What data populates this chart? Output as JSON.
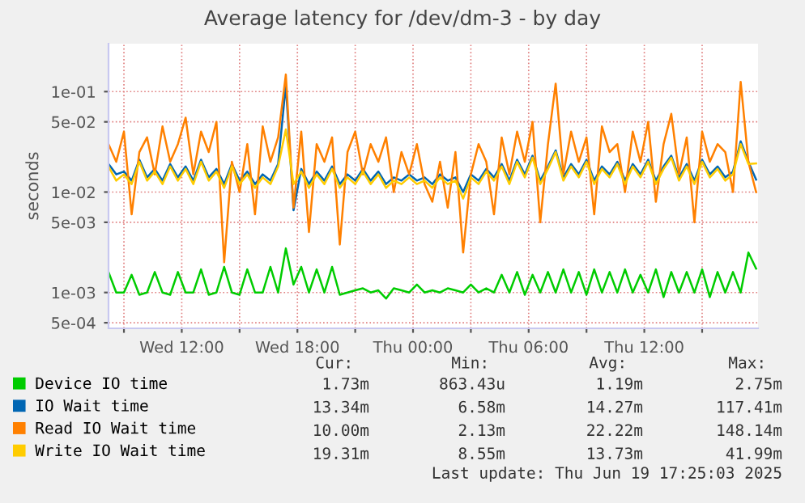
{
  "chart_data": {
    "type": "line",
    "title": "Average latency for /dev/dm-3 - by day",
    "ylabel": "seconds",
    "log": "y",
    "ylim": [
      0.00044,
      0.3
    ],
    "yticks": [
      {
        "value": 0.0005,
        "label": "5e-04"
      },
      {
        "value": 0.001,
        "label": "1e-03"
      },
      {
        "value": 0.005,
        "label": "5e-03"
      },
      {
        "value": 0.01,
        "label": "1e-02"
      },
      {
        "value": 0.05,
        "label": "5e-02"
      },
      {
        "value": 0.1,
        "label": "1e-01"
      }
    ],
    "xlim": [
      "2025-06-18T08:12",
      "2025-06-19T17:54"
    ],
    "xticks": [
      {
        "value": "2025-06-18T09:00",
        "label": null
      },
      {
        "value": "2025-06-18T12:00",
        "label": "Wed 12:00"
      },
      {
        "value": "2025-06-18T15:00",
        "label": null
      },
      {
        "value": "2025-06-18T18:00",
        "label": "Wed 18:00"
      },
      {
        "value": "2025-06-18T21:00",
        "label": null
      },
      {
        "value": "2025-06-19T00:00",
        "label": "Thu 00:00"
      },
      {
        "value": "2025-06-19T03:00",
        "label": null
      },
      {
        "value": "2025-06-19T06:00",
        "label": "Thu 06:00"
      },
      {
        "value": "2025-06-19T09:00",
        "label": null
      },
      {
        "value": "2025-06-19T12:00",
        "label": "Thu 12:00"
      },
      {
        "value": "2025-06-19T15:00",
        "label": null
      }
    ],
    "grid": true,
    "legend": "bottom",
    "line_style": "solid",
    "marker": "none",
    "x": [
      "2025-06-18T08:12",
      "2025-06-18T08:36",
      "2025-06-18T09:00",
      "2025-06-18T09:24",
      "2025-06-18T09:48",
      "2025-06-18T10:12",
      "2025-06-18T10:36",
      "2025-06-18T11:00",
      "2025-06-18T11:24",
      "2025-06-18T11:48",
      "2025-06-18T12:12",
      "2025-06-18T12:36",
      "2025-06-18T13:00",
      "2025-06-18T13:24",
      "2025-06-18T13:48",
      "2025-06-18T14:12",
      "2025-06-18T14:36",
      "2025-06-18T15:00",
      "2025-06-18T15:24",
      "2025-06-18T15:48",
      "2025-06-18T16:12",
      "2025-06-18T16:36",
      "2025-06-18T17:00",
      "2025-06-18T17:24",
      "2025-06-18T17:48",
      "2025-06-18T18:12",
      "2025-06-18T18:36",
      "2025-06-18T19:00",
      "2025-06-18T19:24",
      "2025-06-18T19:48",
      "2025-06-18T20:12",
      "2025-06-18T20:36",
      "2025-06-18T21:00",
      "2025-06-18T21:24",
      "2025-06-18T21:48",
      "2025-06-18T22:12",
      "2025-06-18T22:36",
      "2025-06-18T23:00",
      "2025-06-18T23:24",
      "2025-06-18T23:48",
      "2025-06-19T00:12",
      "2025-06-19T00:36",
      "2025-06-19T01:00",
      "2025-06-19T01:24",
      "2025-06-19T01:48",
      "2025-06-19T02:12",
      "2025-06-19T02:36",
      "2025-06-19T03:00",
      "2025-06-19T03:24",
      "2025-06-19T03:48",
      "2025-06-19T04:12",
      "2025-06-19T04:36",
      "2025-06-19T05:00",
      "2025-06-19T05:24",
      "2025-06-19T05:48",
      "2025-06-19T06:12",
      "2025-06-19T06:36",
      "2025-06-19T07:00",
      "2025-06-19T07:24",
      "2025-06-19T07:48",
      "2025-06-19T08:12",
      "2025-06-19T08:36",
      "2025-06-19T09:00",
      "2025-06-19T09:24",
      "2025-06-19T09:48",
      "2025-06-19T10:12",
      "2025-06-19T10:36",
      "2025-06-19T11:00",
      "2025-06-19T11:24",
      "2025-06-19T11:48",
      "2025-06-19T12:12",
      "2025-06-19T12:36",
      "2025-06-19T13:00",
      "2025-06-19T13:24",
      "2025-06-19T13:48",
      "2025-06-19T14:12",
      "2025-06-19T14:36",
      "2025-06-19T15:00",
      "2025-06-19T15:24",
      "2025-06-19T15:48",
      "2025-06-19T16:12",
      "2025-06-19T16:36",
      "2025-06-19T17:00",
      "2025-06-19T17:24",
      "2025-06-19T17:48"
    ],
    "series": [
      {
        "name": "Device IO time",
        "color": "#00cc00",
        "values": [
          0.0016,
          0.001,
          0.001,
          0.0015,
          0.00095,
          0.001,
          0.0016,
          0.001,
          0.00095,
          0.0016,
          0.001,
          0.001,
          0.0017,
          0.00095,
          0.001,
          0.0018,
          0.001,
          0.00095,
          0.0017,
          0.001,
          0.001,
          0.0018,
          0.001,
          0.00275,
          0.0012,
          0.0018,
          0.001,
          0.0017,
          0.001,
          0.0018,
          0.00095,
          0.001,
          0.00105,
          0.0011,
          0.001,
          0.00105,
          0.00087,
          0.0011,
          0.00105,
          0.001,
          0.0012,
          0.001,
          0.00105,
          0.001,
          0.0011,
          0.00105,
          0.001,
          0.0012,
          0.001,
          0.0011,
          0.001,
          0.0015,
          0.001,
          0.0016,
          0.00095,
          0.0015,
          0.001,
          0.0016,
          0.001,
          0.0017,
          0.001,
          0.0016,
          0.00095,
          0.0017,
          0.001,
          0.0016,
          0.001,
          0.0017,
          0.001,
          0.0015,
          0.001,
          0.0017,
          0.0009,
          0.0016,
          0.001,
          0.0016,
          0.001,
          0.0017,
          0.0009,
          0.0016,
          0.001,
          0.0016,
          0.001,
          0.0025,
          0.00173
        ]
      },
      {
        "name": "IO Wait time",
        "color": "#0066b3",
        "values": [
          0.019,
          0.015,
          0.016,
          0.013,
          0.021,
          0.014,
          0.017,
          0.013,
          0.019,
          0.014,
          0.018,
          0.013,
          0.021,
          0.014,
          0.017,
          0.012,
          0.019,
          0.013,
          0.016,
          0.012,
          0.015,
          0.013,
          0.019,
          0.117,
          0.0066,
          0.017,
          0.012,
          0.016,
          0.013,
          0.018,
          0.012,
          0.015,
          0.013,
          0.017,
          0.013,
          0.016,
          0.012,
          0.014,
          0.013,
          0.015,
          0.013,
          0.014,
          0.012,
          0.015,
          0.013,
          0.014,
          0.01,
          0.015,
          0.013,
          0.017,
          0.014,
          0.019,
          0.013,
          0.021,
          0.015,
          0.023,
          0.013,
          0.018,
          0.026,
          0.014,
          0.019,
          0.015,
          0.021,
          0.013,
          0.018,
          0.015,
          0.02,
          0.013,
          0.019,
          0.015,
          0.021,
          0.013,
          0.018,
          0.023,
          0.014,
          0.019,
          0.013,
          0.021,
          0.015,
          0.018,
          0.014,
          0.016,
          0.032,
          0.02,
          0.0133
        ]
      },
      {
        "name": "Read IO Wait time",
        "color": "#ff8000",
        "values": [
          0.03,
          0.02,
          0.04,
          0.006,
          0.025,
          0.035,
          0.015,
          0.045,
          0.02,
          0.03,
          0.055,
          0.015,
          0.04,
          0.025,
          0.05,
          0.002,
          0.02,
          0.01,
          0.03,
          0.006,
          0.045,
          0.02,
          0.035,
          0.148,
          0.007,
          0.04,
          0.004,
          0.03,
          0.02,
          0.035,
          0.003,
          0.025,
          0.04,
          0.015,
          0.03,
          0.02,
          0.035,
          0.01,
          0.025,
          0.015,
          0.03,
          0.012,
          0.008,
          0.02,
          0.007,
          0.025,
          0.0025,
          0.015,
          0.03,
          0.02,
          0.006,
          0.035,
          0.015,
          0.04,
          0.02,
          0.05,
          0.005,
          0.03,
          0.12,
          0.015,
          0.04,
          0.02,
          0.035,
          0.006,
          0.045,
          0.025,
          0.03,
          0.01,
          0.04,
          0.02,
          0.05,
          0.008,
          0.03,
          0.06,
          0.015,
          0.035,
          0.005,
          0.04,
          0.02,
          0.03,
          0.025,
          0.01,
          0.125,
          0.02,
          0.01
        ]
      },
      {
        "name": "Write IO Wait time",
        "color": "#ffcc00",
        "values": [
          0.018,
          0.013,
          0.015,
          0.012,
          0.02,
          0.013,
          0.016,
          0.012,
          0.018,
          0.013,
          0.017,
          0.012,
          0.02,
          0.013,
          0.016,
          0.011,
          0.018,
          0.012,
          0.015,
          0.011,
          0.014,
          0.012,
          0.018,
          0.042,
          0.012,
          0.016,
          0.011,
          0.015,
          0.012,
          0.017,
          0.011,
          0.014,
          0.012,
          0.016,
          0.012,
          0.015,
          0.011,
          0.013,
          0.012,
          0.014,
          0.012,
          0.013,
          0.011,
          0.014,
          0.012,
          0.013,
          0.0086,
          0.014,
          0.012,
          0.016,
          0.013,
          0.018,
          0.012,
          0.02,
          0.014,
          0.022,
          0.012,
          0.017,
          0.025,
          0.013,
          0.018,
          0.014,
          0.02,
          0.012,
          0.017,
          0.014,
          0.019,
          0.012,
          0.018,
          0.014,
          0.02,
          0.012,
          0.017,
          0.022,
          0.013,
          0.018,
          0.012,
          0.02,
          0.014,
          0.017,
          0.013,
          0.015,
          0.03,
          0.019,
          0.0193
        ]
      }
    ],
    "annotations": [
      "Cur:",
      "Min:",
      "Avg:",
      "Max:",
      "1.73m",
      "863.43u",
      "1.19m",
      "2.75m",
      "13.34m",
      "6.58m",
      "14.27m",
      "117.41m",
      "10.00m",
      "2.13m",
      "22.22m",
      "148.14m",
      "19.31m",
      "8.55m",
      "13.73m",
      "41.99m",
      "Last update: Thu Jun 19 17:25:03 2025"
    ]
  }
}
